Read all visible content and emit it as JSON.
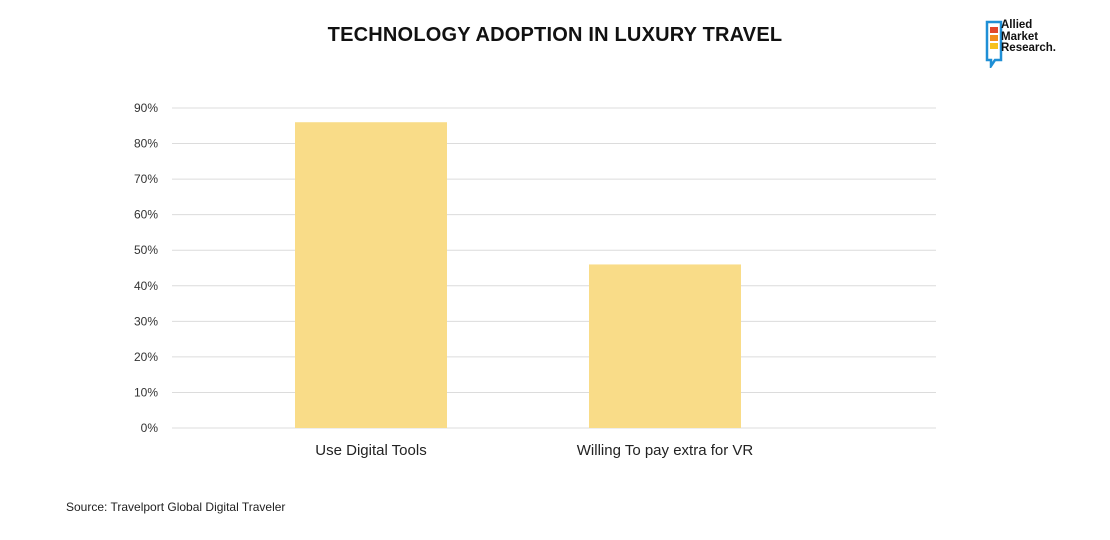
{
  "source": "Source: Travelport Global Digital Traveler",
  "logo": {
    "lines": [
      "Allied",
      "Market",
      "Research."
    ]
  },
  "colors": {
    "bar": "#f9dc88",
    "grid": "#dcdcdc",
    "logo_blue": "#1f8fd6",
    "logo_orange": "#f28c1c",
    "logo_yellow": "#f6c21c"
  },
  "chart_data": {
    "type": "bar",
    "title": "TECHNOLOGY ADOPTION IN LUXURY TRAVEL",
    "categories": [
      "Use Digital Tools",
      "Willing To pay extra for VR"
    ],
    "values": [
      86,
      46
    ],
    "ylim": [
      0,
      90
    ],
    "yticks": [
      "0%",
      "10%",
      "20%",
      "30%",
      "40%",
      "50%",
      "60%",
      "70%",
      "80%",
      "90%"
    ],
    "grid": true,
    "xlabel": "",
    "ylabel": ""
  }
}
